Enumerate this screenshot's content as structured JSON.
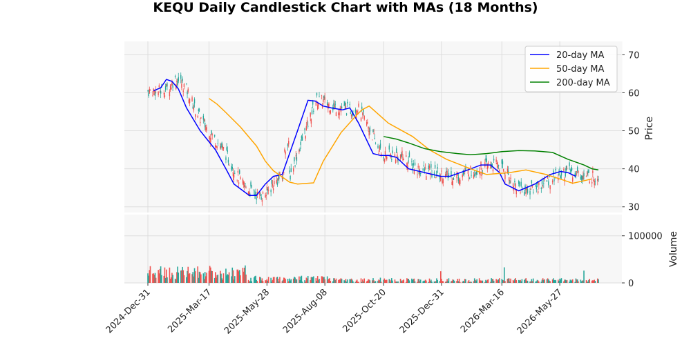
{
  "chart_data": {
    "type": "candlestick",
    "title": "KEQU Daily Candlestick Chart with MAs (18 Months)",
    "price_panel": {
      "ylabel": "Price",
      "yticks": [
        30,
        40,
        50,
        60,
        70
      ],
      "ylim": [
        28.5,
        73.5
      ],
      "grid": true,
      "legend_placement": "top-right",
      "up_color": "#26a69a",
      "down_color": "#ef5350",
      "series": [
        {
          "name": "20-day MA",
          "color": "#0000ff",
          "points": [
            [
              "2025-01-07",
              60.5
            ],
            [
              "2025-01-16",
              61.3
            ],
            [
              "2025-01-23",
              63.5
            ],
            [
              "2025-01-30",
              63.0
            ],
            [
              "2025-02-07",
              61.0
            ],
            [
              "2025-02-17",
              56.0
            ],
            [
              "2025-03-06",
              50.0
            ],
            [
              "2025-03-25",
              45.0
            ],
            [
              "2025-04-07",
              40.0
            ],
            [
              "2025-04-17",
              36.0
            ],
            [
              "2025-05-06",
              33.0
            ],
            [
              "2025-05-15",
              33.0
            ],
            [
              "2025-05-26",
              36.0
            ],
            [
              "2025-06-05",
              38.0
            ],
            [
              "2025-06-16",
              38.5
            ],
            [
              "2025-07-05",
              50.0
            ],
            [
              "2025-07-18",
              58.0
            ],
            [
              "2025-07-27",
              57.8
            ],
            [
              "2025-08-06",
              56.5
            ],
            [
              "2025-08-16",
              56.0
            ],
            [
              "2025-08-30",
              55.5
            ],
            [
              "2025-09-08",
              56.0
            ],
            [
              "2025-09-19",
              52.0
            ],
            [
              "2025-10-07",
              44.0
            ],
            [
              "2025-10-16",
              43.5
            ],
            [
              "2025-10-26",
              43.5
            ],
            [
              "2025-11-05",
              43.0
            ],
            [
              "2025-11-20",
              40.0
            ],
            [
              "2025-12-10",
              39.0
            ],
            [
              "2025-12-30",
              38.0
            ],
            [
              "2026-01-10",
              38.0
            ],
            [
              "2026-01-30",
              39.5
            ],
            [
              "2026-02-18",
              41.0
            ],
            [
              "2026-03-02",
              41.0
            ],
            [
              "2026-03-13",
              39.0
            ],
            [
              "2026-03-20",
              36.0
            ],
            [
              "2026-04-06",
              34.2
            ],
            [
              "2026-04-26",
              36.0
            ],
            [
              "2026-05-15",
              38.5
            ],
            [
              "2026-05-28",
              39.3
            ],
            [
              "2026-06-06",
              39.0
            ],
            [
              "2026-06-16",
              38.0
            ]
          ]
        },
        {
          "name": "50-day MA",
          "color": "#ffa500",
          "points": [
            [
              "2025-03-17",
              58.5
            ],
            [
              "2025-03-27",
              57.0
            ],
            [
              "2025-04-06",
              55.0
            ],
            [
              "2025-04-25",
              51.0
            ],
            [
              "2025-05-15",
              46.0
            ],
            [
              "2025-05-26",
              42.0
            ],
            [
              "2025-06-05",
              39.5
            ],
            [
              "2025-06-25",
              36.5
            ],
            [
              "2025-07-05",
              36.0
            ],
            [
              "2025-07-25",
              36.3
            ],
            [
              "2025-08-06",
              42.0
            ],
            [
              "2025-08-28",
              49.5
            ],
            [
              "2025-09-16",
              54.0
            ],
            [
              "2025-09-23",
              55.5
            ],
            [
              "2025-10-02",
              56.5
            ],
            [
              "2025-10-26",
              52.0
            ],
            [
              "2025-11-25",
              48.5
            ],
            [
              "2025-12-16",
              45.0
            ],
            [
              "2026-01-06",
              42.5
            ],
            [
              "2026-02-05",
              40.0
            ],
            [
              "2026-02-25",
              38.5
            ],
            [
              "2026-03-26",
              39.0
            ],
            [
              "2026-04-15",
              39.7
            ],
            [
              "2026-05-10",
              38.5
            ],
            [
              "2026-06-01",
              37.0
            ],
            [
              "2026-06-12",
              36.2
            ],
            [
              "2026-06-29",
              37.0
            ],
            [
              "2026-07-05",
              37.3
            ]
          ]
        },
        {
          "name": "200-day MA",
          "color": "#008000",
          "points": [
            [
              "2025-10-20",
              48.5
            ],
            [
              "2025-11-05",
              47.8
            ],
            [
              "2025-11-20",
              46.8
            ],
            [
              "2025-12-10",
              45.3
            ],
            [
              "2025-12-30",
              44.5
            ],
            [
              "2026-01-20",
              44.0
            ],
            [
              "2026-02-05",
              43.7
            ],
            [
              "2026-02-25",
              44.0
            ],
            [
              "2026-03-16",
              44.5
            ],
            [
              "2026-04-06",
              44.8
            ],
            [
              "2026-04-26",
              44.7
            ],
            [
              "2026-05-18",
              44.3
            ],
            [
              "2026-06-06",
              42.5
            ],
            [
              "2026-06-26",
              41.0
            ],
            [
              "2026-07-06",
              40.0
            ],
            [
              "2026-07-14",
              39.7
            ]
          ]
        }
      ]
    },
    "volume_panel": {
      "ylabel": "Volume",
      "yticks": [
        0,
        100000
      ],
      "ylim": [
        0,
        145000
      ],
      "grid": true
    },
    "x_axis": {
      "start": "2024-12-31",
      "end": "2026-07-14",
      "tick_labels": [
        "2024-Dec-31",
        "2025-Mar-17",
        "2025-May-28",
        "2025-Aug-08",
        "2025-Oct-20",
        "2025-Dec-31",
        "2026-Mar-16",
        "2026-May-27"
      ],
      "tick_dates": [
        "2024-12-31",
        "2025-03-17",
        "2025-05-28",
        "2025-08-08",
        "2025-10-20",
        "2025-12-31",
        "2026-03-16",
        "2026-05-27"
      ]
    }
  }
}
